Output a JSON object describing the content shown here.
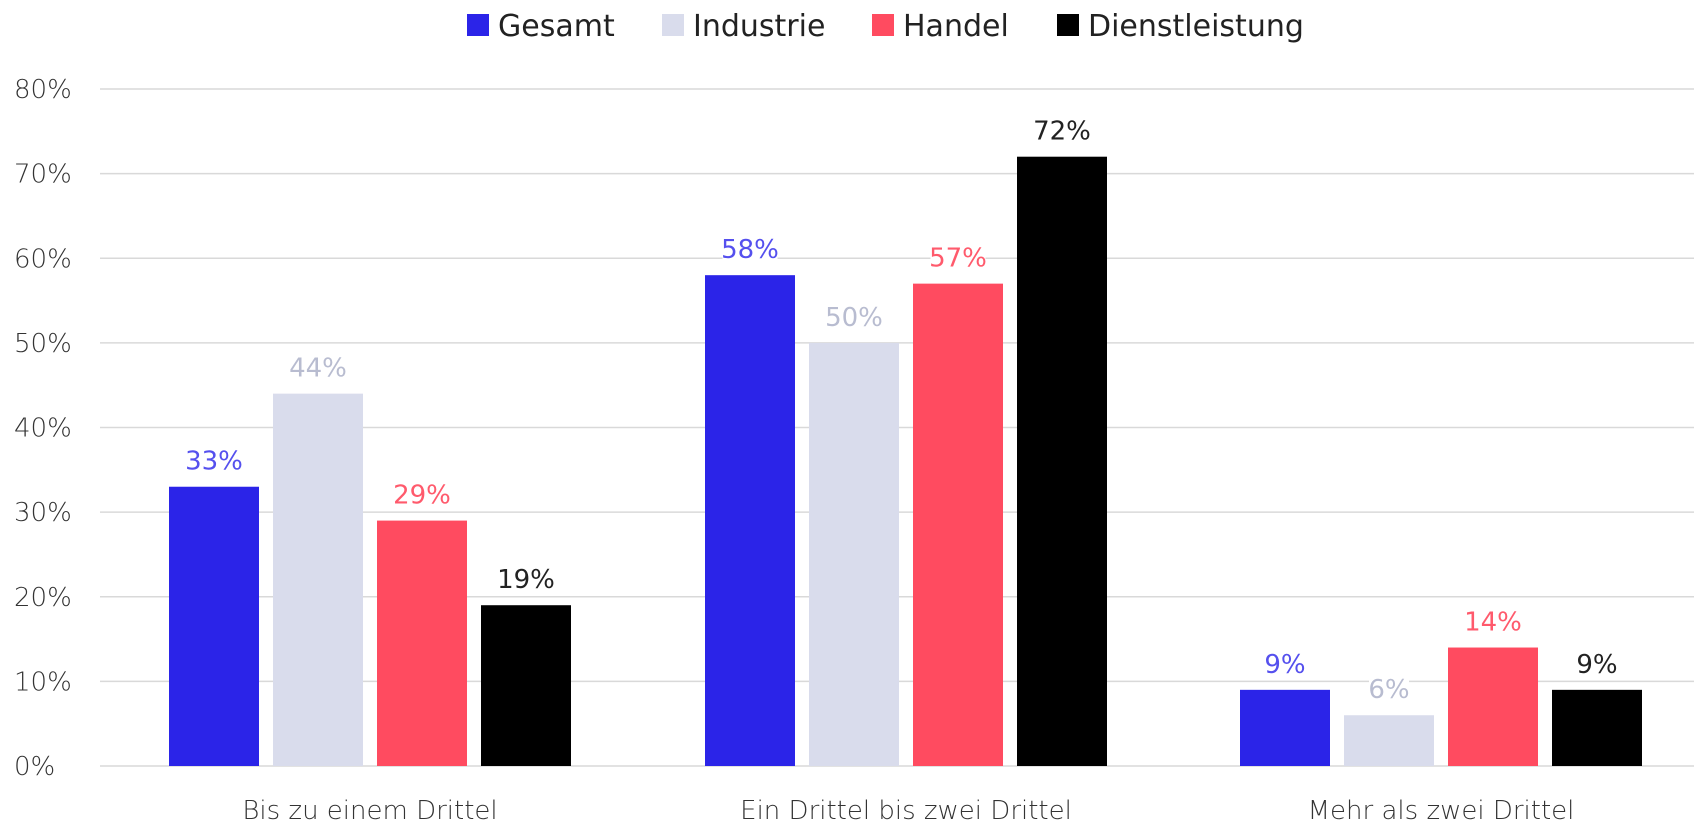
{
  "chart_data": {
    "type": "bar",
    "title": "",
    "xlabel": "",
    "ylabel": "",
    "categories": [
      "Bis zu einem Drittel",
      "Ein Drittel bis zwei Drittel",
      "Mehr als zwei Drittel"
    ],
    "series": [
      {
        "name": "Gesamt",
        "values": [
          33,
          58,
          9
        ],
        "color": "#2b24e8",
        "label_color": "#5550ee"
      },
      {
        "name": "Industrie",
        "values": [
          44,
          50,
          6
        ],
        "color": "#d9dcec",
        "label_color": "#b8bcd0"
      },
      {
        "name": "Handel",
        "values": [
          29,
          57,
          14
        ],
        "color": "#ff4b60",
        "label_color": "#ff5a6c"
      },
      {
        "name": "Dienstleistung",
        "values": [
          19,
          72,
          9
        ],
        "color": "#000000",
        "label_color": "#222222"
      }
    ],
    "ylim": [
      0,
      80
    ],
    "yticks": [
      0,
      10,
      20,
      30,
      40,
      50,
      60,
      70,
      80
    ],
    "value_suffix": "%",
    "grid": true,
    "legend_position": "top-center"
  }
}
